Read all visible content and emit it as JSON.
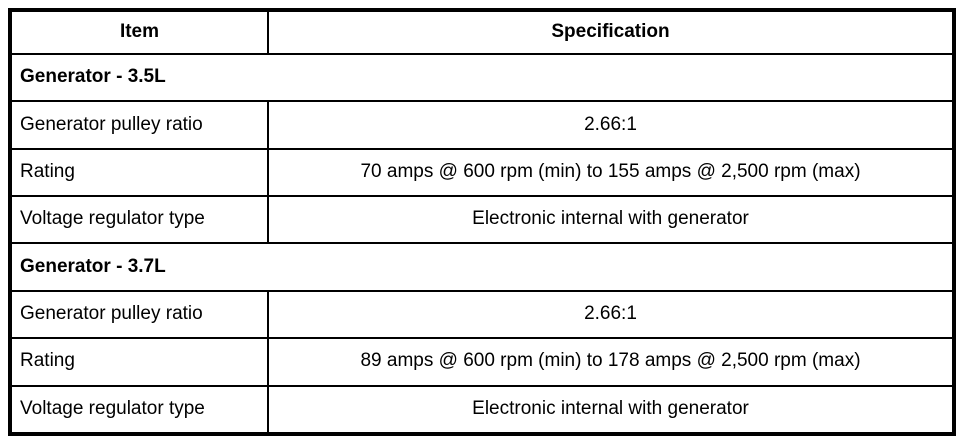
{
  "colors": {
    "border": "#000000",
    "background": "#ffffff",
    "text": "#000000"
  },
  "table": {
    "headers": {
      "item": "Item",
      "specification": "Specification"
    },
    "sections": [
      {
        "title": "Generator - 3.5L",
        "rows": [
          {
            "item": "Generator pulley ratio",
            "spec": "2.66:1"
          },
          {
            "item": "Rating",
            "spec": "70 amps @ 600 rpm (min) to 155 amps @ 2,500 rpm (max)"
          },
          {
            "item": "Voltage regulator type",
            "spec": "Electronic internal with generator"
          }
        ]
      },
      {
        "title": "Generator - 3.7L",
        "rows": [
          {
            "item": "Generator pulley ratio",
            "spec": "2.66:1"
          },
          {
            "item": "Rating",
            "spec": "89 amps @ 600 rpm (min) to 178 amps @ 2,500 rpm (max)"
          },
          {
            "item": "Voltage regulator type",
            "spec": "Electronic internal with generator"
          }
        ]
      }
    ]
  }
}
